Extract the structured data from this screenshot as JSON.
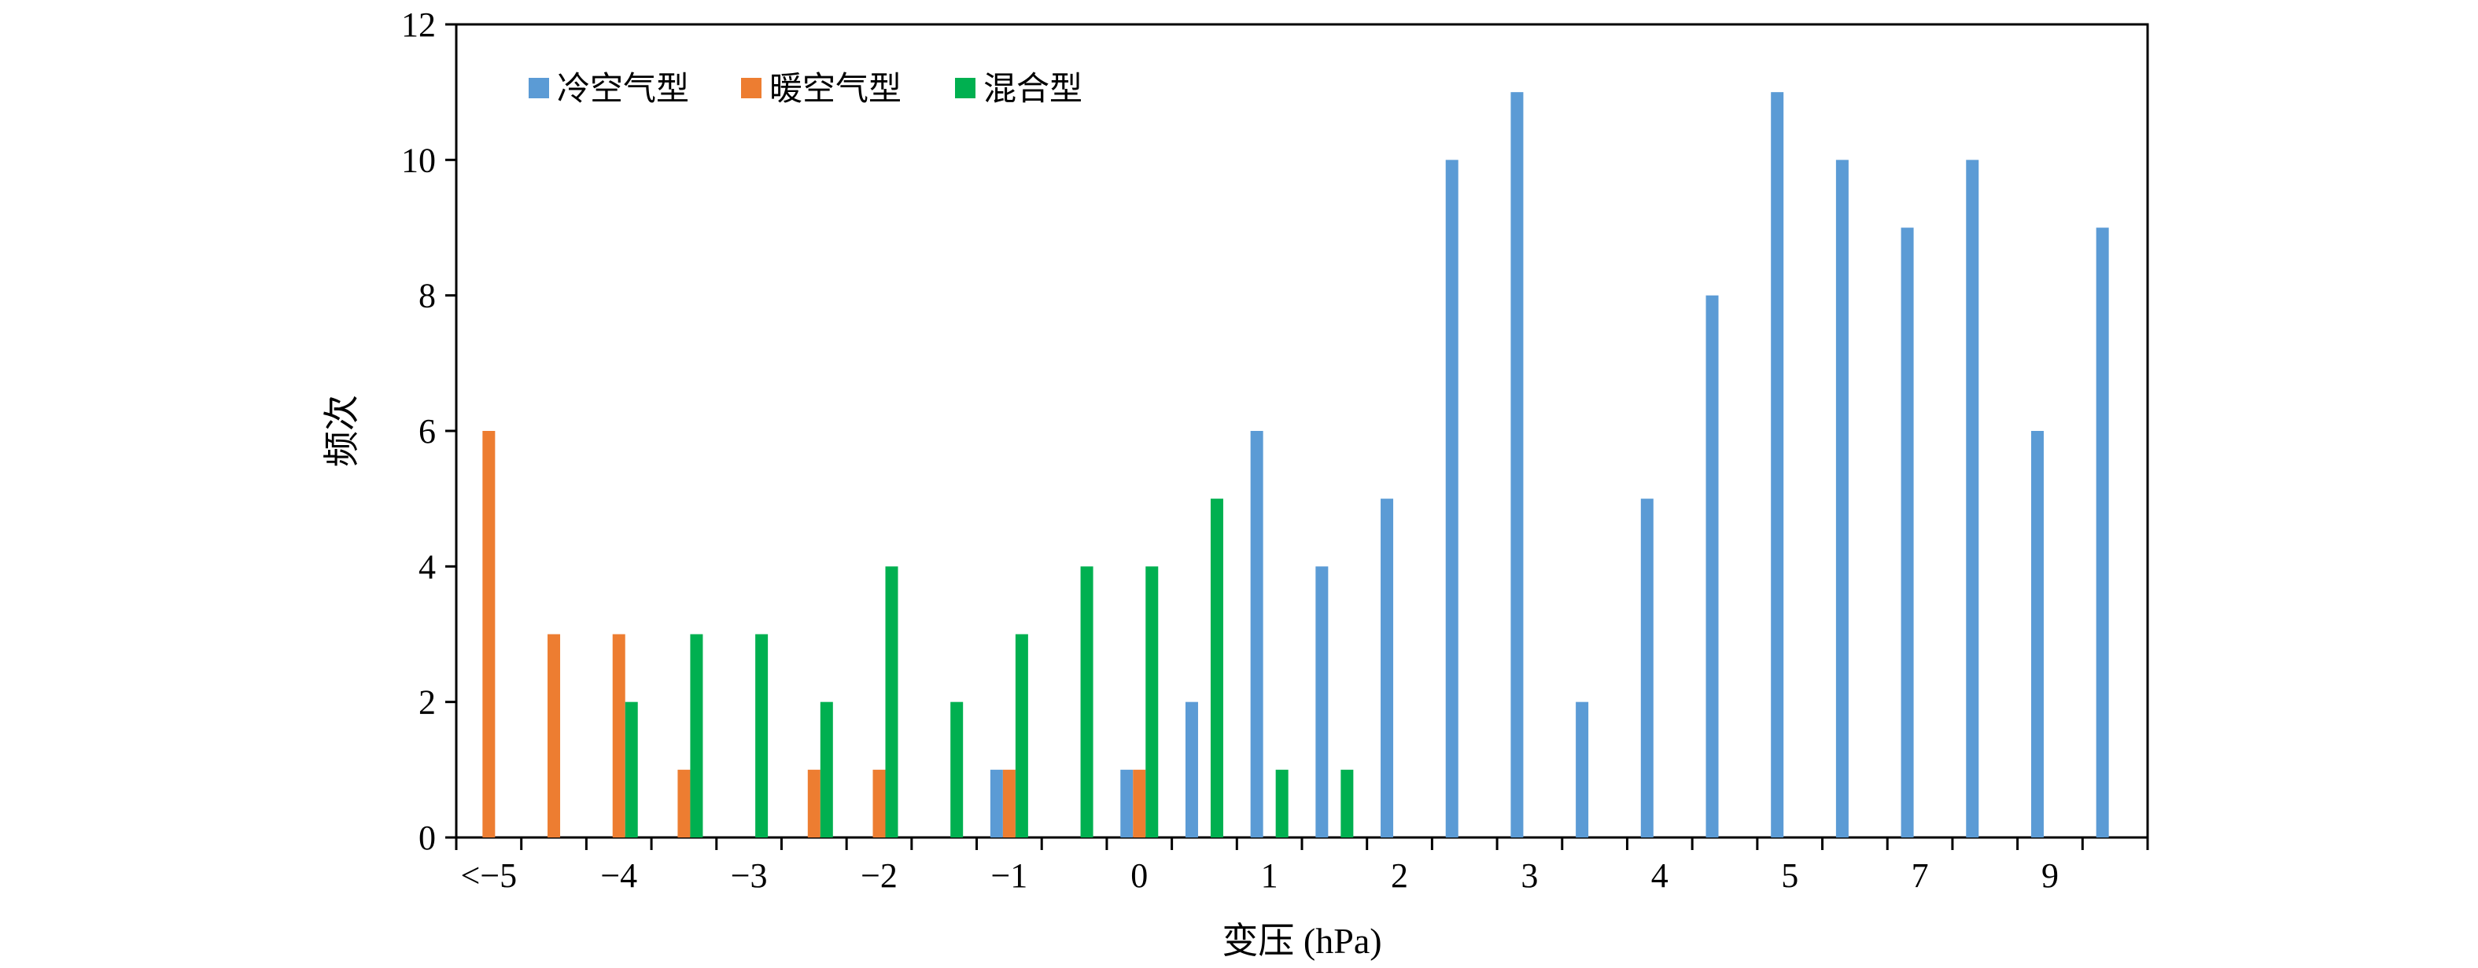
{
  "chart_data": {
    "type": "bar",
    "xlabel": "变压 (hPa)",
    "ylabel": "频次",
    "ylim": [
      0,
      12
    ],
    "yticks": [
      0,
      2,
      4,
      6,
      8,
      10,
      12
    ],
    "xtick_labels": [
      "<−5",
      "−4",
      "−3",
      "−2",
      "−1",
      "0",
      "1",
      "2",
      "3",
      "4",
      "5",
      "7",
      "9"
    ],
    "categories": [
      "<−5",
      "−4.5",
      "−4",
      "−3.5",
      "−3",
      "−2.5",
      "−2",
      "−1.5",
      "−1",
      "−0.5",
      "0",
      "0.5",
      "1",
      "1.5",
      "2",
      "2.5",
      "3",
      "3.5",
      "4",
      "4.5",
      "5",
      "6",
      "7",
      "8",
      "9",
      "10"
    ],
    "series": [
      {
        "name": "冷空气型",
        "color": "#5b9bd5",
        "values": [
          0,
          0,
          0,
          0,
          0,
          0,
          0,
          0,
          1,
          0,
          1,
          2,
          6,
          4,
          5,
          10,
          11,
          2,
          5,
          8,
          11,
          10,
          9,
          10,
          6,
          9
        ]
      },
      {
        "name": "暖空气型",
        "color": "#ed7d31",
        "values": [
          6,
          3,
          3,
          1,
          0,
          1,
          1,
          0,
          1,
          0,
          1,
          0,
          0,
          0,
          0,
          0,
          0,
          0,
          0,
          0,
          0,
          0,
          0,
          0,
          0,
          0
        ]
      },
      {
        "name": "混合型",
        "color": "#00b050",
        "values": [
          0,
          0,
          2,
          3,
          3,
          2,
          4,
          2,
          3,
          4,
          4,
          5,
          1,
          1,
          0,
          0,
          0,
          0,
          0,
          0,
          0,
          0,
          0,
          0,
          0,
          0
        ]
      }
    ],
    "grid": false,
    "legend_position": "top-left"
  }
}
